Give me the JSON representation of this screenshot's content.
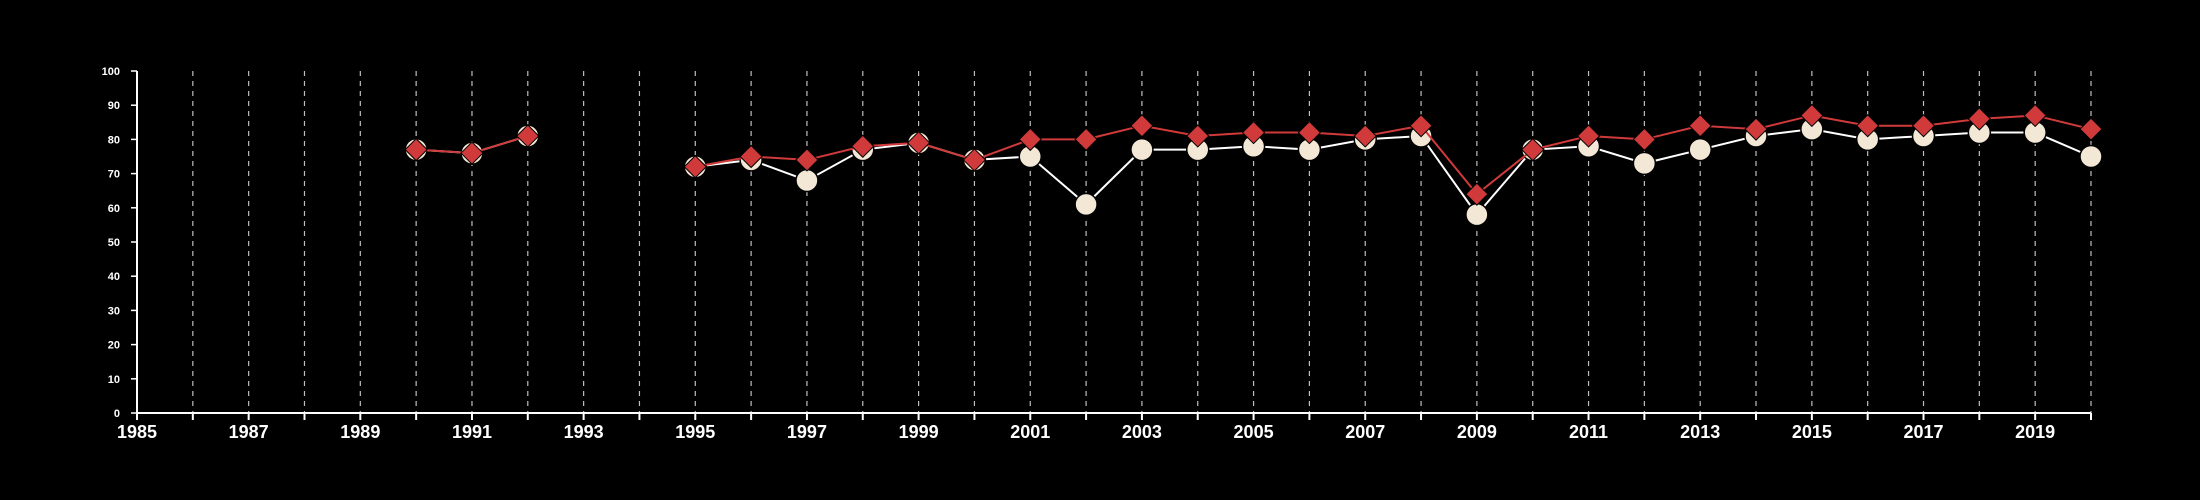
{
  "chart_data": {
    "type": "line",
    "title": "",
    "xlabel": "",
    "ylabel": "",
    "xlim": [
      1985,
      2020
    ],
    "ylim": [
      0,
      100
    ],
    "x_ticks": [
      "1985",
      "1987",
      "1989",
      "1991",
      "1993",
      "1995",
      "1997",
      "1999",
      "2001",
      "2003",
      "2005",
      "2007",
      "2009",
      "2011",
      "2013",
      "2015",
      "2017",
      "2019"
    ],
    "y_ticks": [
      "0",
      "10",
      "20",
      "30",
      "40",
      "50",
      "60",
      "70",
      "80",
      "90",
      "100"
    ],
    "grid": "vertical dashed lines at each year",
    "legend": "none",
    "series": [
      {
        "marker": "circle",
        "color": "#ffffff",
        "marker_fill": "#f3e7d6",
        "x": [
          1990,
          1991,
          1992,
          1995,
          1996,
          1997,
          1998,
          1999,
          2000,
          2001,
          2002,
          2003,
          2004,
          2005,
          2006,
          2007,
          2008,
          2009,
          2010,
          2011,
          2012,
          2013,
          2014,
          2015,
          2016,
          2017,
          2018,
          2019,
          2020
        ],
        "values": [
          77,
          76,
          81,
          72,
          74,
          68,
          77,
          79,
          74,
          75,
          61,
          77,
          77,
          78,
          77,
          80,
          81,
          58,
          77,
          78,
          73,
          77,
          81,
          83,
          80,
          81,
          82,
          82,
          75
        ]
      },
      {
        "marker": "diamond",
        "color": "#d13a3a",
        "x": [
          1990,
          1991,
          1992,
          1995,
          1996,
          1997,
          1998,
          1999,
          2000,
          2001,
          2002,
          2003,
          2004,
          2005,
          2006,
          2007,
          2008,
          2009,
          2010,
          2011,
          2012,
          2013,
          2014,
          2015,
          2016,
          2017,
          2018,
          2019,
          2020
        ],
        "values": [
          77,
          76,
          81,
          72,
          75,
          74,
          78,
          79,
          74,
          80,
          80,
          84,
          81,
          82,
          82,
          81,
          84,
          64,
          77,
          81,
          80,
          84,
          83,
          87,
          84,
          84,
          86,
          87,
          83
        ]
      }
    ]
  }
}
